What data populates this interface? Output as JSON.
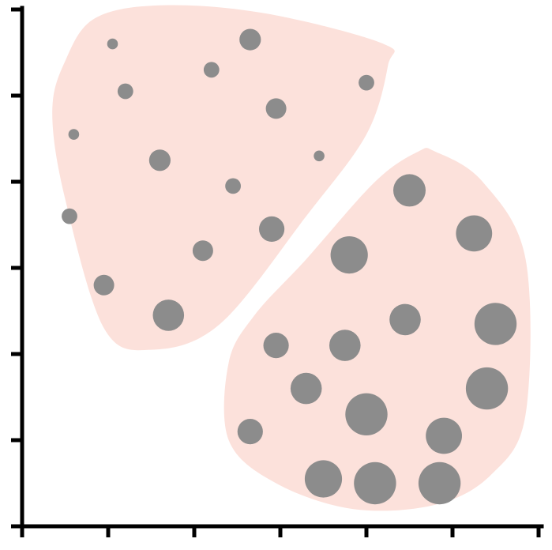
{
  "chart_data": {
    "type": "scatter",
    "title": "",
    "xlabel": "",
    "ylabel": "",
    "xlim": [
      0,
      6
    ],
    "ylim": [
      0,
      6
    ],
    "x_ticks": [
      0,
      1,
      2,
      3,
      4,
      5,
      6
    ],
    "y_ticks": [
      0,
      1,
      2,
      3,
      4,
      5,
      6
    ],
    "tick_labels_shown": false,
    "grid": false,
    "legend": "none",
    "colors": {
      "points": "#8c8c8c",
      "regions": "#fce1db",
      "axes": "#000000"
    },
    "regions": [
      {
        "polygon": [
          [
            0.85,
            5.9
          ],
          [
            1.65,
            6.05
          ],
          [
            2.85,
            5.95
          ],
          [
            4.2,
            5.6
          ],
          [
            4.25,
            5.35
          ],
          [
            4.0,
            4.55
          ],
          [
            3.3,
            3.6
          ],
          [
            2.3,
            2.35
          ],
          [
            1.5,
            2.05
          ],
          [
            0.95,
            2.3
          ],
          [
            0.5,
            3.8
          ],
          [
            0.35,
            4.8
          ],
          [
            0.5,
            5.4
          ]
        ]
      },
      {
        "polygon": [
          [
            4.8,
            4.35
          ],
          [
            5.35,
            4.0
          ],
          [
            5.85,
            3.1
          ],
          [
            5.85,
            1.3
          ],
          [
            5.45,
            0.6
          ],
          [
            4.8,
            0.25
          ],
          [
            3.85,
            0.2
          ],
          [
            2.95,
            0.5
          ],
          [
            2.4,
            1.0
          ],
          [
            2.4,
            1.9
          ],
          [
            2.7,
            2.45
          ],
          [
            3.3,
            3.1
          ],
          [
            4.1,
            4.0
          ],
          [
            4.6,
            4.35
          ]
        ]
      }
    ],
    "points": [
      {
        "x": 1.05,
        "y": 5.6,
        "size": 1.1
      },
      {
        "x": 2.2,
        "y": 5.3,
        "size": 1.6
      },
      {
        "x": 2.65,
        "y": 5.65,
        "size": 2.2
      },
      {
        "x": 1.2,
        "y": 5.05,
        "size": 1.6
      },
      {
        "x": 0.6,
        "y": 4.55,
        "size": 1.1
      },
      {
        "x": 2.95,
        "y": 4.85,
        "size": 2.1
      },
      {
        "x": 4.0,
        "y": 5.15,
        "size": 1.6
      },
      {
        "x": 1.6,
        "y": 4.25,
        "size": 2.2
      },
      {
        "x": 3.45,
        "y": 4.3,
        "size": 1.1
      },
      {
        "x": 2.45,
        "y": 3.95,
        "size": 1.6
      },
      {
        "x": 0.55,
        "y": 3.6,
        "size": 1.6
      },
      {
        "x": 2.9,
        "y": 3.45,
        "size": 2.6
      },
      {
        "x": 2.1,
        "y": 3.2,
        "size": 2.1
      },
      {
        "x": 0.95,
        "y": 2.8,
        "size": 2.1
      },
      {
        "x": 1.7,
        "y": 2.45,
        "size": 3.2
      },
      {
        "x": 4.5,
        "y": 3.9,
        "size": 3.3
      },
      {
        "x": 5.25,
        "y": 3.4,
        "size": 3.7
      },
      {
        "x": 3.8,
        "y": 3.15,
        "size": 3.8
      },
      {
        "x": 5.5,
        "y": 2.35,
        "size": 4.3
      },
      {
        "x": 4.45,
        "y": 2.4,
        "size": 3.2
      },
      {
        "x": 3.75,
        "y": 2.1,
        "size": 3.2
      },
      {
        "x": 2.95,
        "y": 2.1,
        "size": 2.6
      },
      {
        "x": 5.4,
        "y": 1.6,
        "size": 4.3
      },
      {
        "x": 3.3,
        "y": 1.6,
        "size": 3.2
      },
      {
        "x": 4.0,
        "y": 1.3,
        "size": 4.3
      },
      {
        "x": 4.9,
        "y": 1.05,
        "size": 3.7
      },
      {
        "x": 2.65,
        "y": 1.1,
        "size": 2.6
      },
      {
        "x": 3.5,
        "y": 0.55,
        "size": 3.8
      },
      {
        "x": 4.1,
        "y": 0.5,
        "size": 4.3
      },
      {
        "x": 4.85,
        "y": 0.5,
        "size": 4.3
      }
    ]
  }
}
